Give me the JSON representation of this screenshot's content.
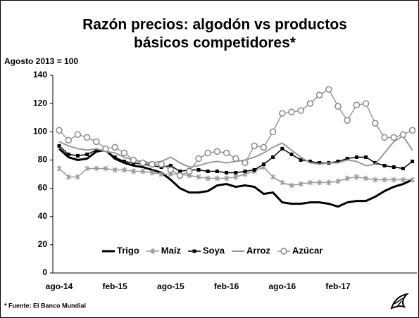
{
  "chart_data": {
    "type": "line",
    "title": [
      "Razón precios: algodón vs productos",
      "básicos competidores*"
    ],
    "y_label": "Agosto 2013 = 100",
    "footnote": "* Fuente: El Banco Mundial",
    "categories": [
      "ago-14",
      null,
      null,
      null,
      null,
      null,
      "feb-15",
      null,
      null,
      null,
      null,
      null,
      "ago-15",
      null,
      null,
      null,
      null,
      null,
      "feb-16",
      null,
      null,
      null,
      null,
      null,
      "ago-16",
      null,
      null,
      null,
      null,
      null,
      "feb-17",
      null,
      null,
      null,
      null,
      null,
      null,
      null,
      null
    ],
    "ylim": [
      0,
      140
    ],
    "yticks": [
      0,
      20,
      40,
      60,
      80,
      100,
      120,
      140
    ],
    "grid": false,
    "legend": "bottom",
    "series": [
      {
        "name": "Trigo",
        "color": "#000000",
        "marker": "none",
        "values": [
          88,
          82,
          80,
          81,
          86,
          87,
          81,
          78,
          76,
          75,
          73,
          71,
          66,
          60,
          57,
          57,
          58,
          62,
          63,
          61,
          62,
          61,
          56,
          57,
          50,
          49,
          49,
          50,
          50,
          49,
          47,
          50,
          51,
          51,
          54,
          58,
          61,
          63,
          66
        ]
      },
      {
        "name": "Maíz",
        "color": "#999999",
        "marker": "cross",
        "values": [
          74,
          68,
          68,
          74,
          74,
          74,
          73,
          73,
          72,
          72,
          71,
          70,
          70,
          70,
          69,
          68,
          67,
          67,
          67,
          68,
          70,
          72,
          75,
          68,
          64,
          62,
          63,
          64,
          64,
          64,
          65,
          67,
          68,
          67,
          66,
          66,
          66,
          66,
          66
        ]
      },
      {
        "name": "Soya",
        "color": "#000000",
        "marker": "square",
        "values": [
          90,
          84,
          83,
          84,
          87,
          87,
          82,
          79,
          78,
          77,
          76,
          75,
          76,
          72,
          73,
          73,
          72,
          72,
          71,
          71,
          72,
          73,
          77,
          82,
          88,
          84,
          80,
          79,
          78,
          78,
          79,
          81,
          82,
          82,
          78,
          76,
          75,
          74,
          79
        ]
      },
      {
        "name": "Arroz",
        "color": "#999999",
        "marker": "none",
        "values": [
          93,
          90,
          88,
          87,
          88,
          86,
          85,
          82,
          80,
          79,
          78,
          79,
          82,
          78,
          75,
          76,
          78,
          79,
          78,
          79,
          80,
          82,
          85,
          89,
          92,
          87,
          82,
          78,
          77,
          78,
          78,
          80,
          79,
          76,
          77,
          85,
          93,
          97,
          87
        ]
      },
      {
        "name": "Azúcar",
        "color": "#999999",
        "marker": "circle",
        "values": [
          101,
          94,
          98,
          96,
          93,
          88,
          89,
          85,
          80,
          78,
          77,
          77,
          73,
          69,
          72,
          81,
          85,
          86,
          85,
          81,
          78,
          90,
          89,
          100,
          113,
          114,
          115,
          120,
          126,
          130,
          118,
          108,
          119,
          120,
          106,
          96,
          96,
          98,
          101
        ]
      }
    ]
  }
}
